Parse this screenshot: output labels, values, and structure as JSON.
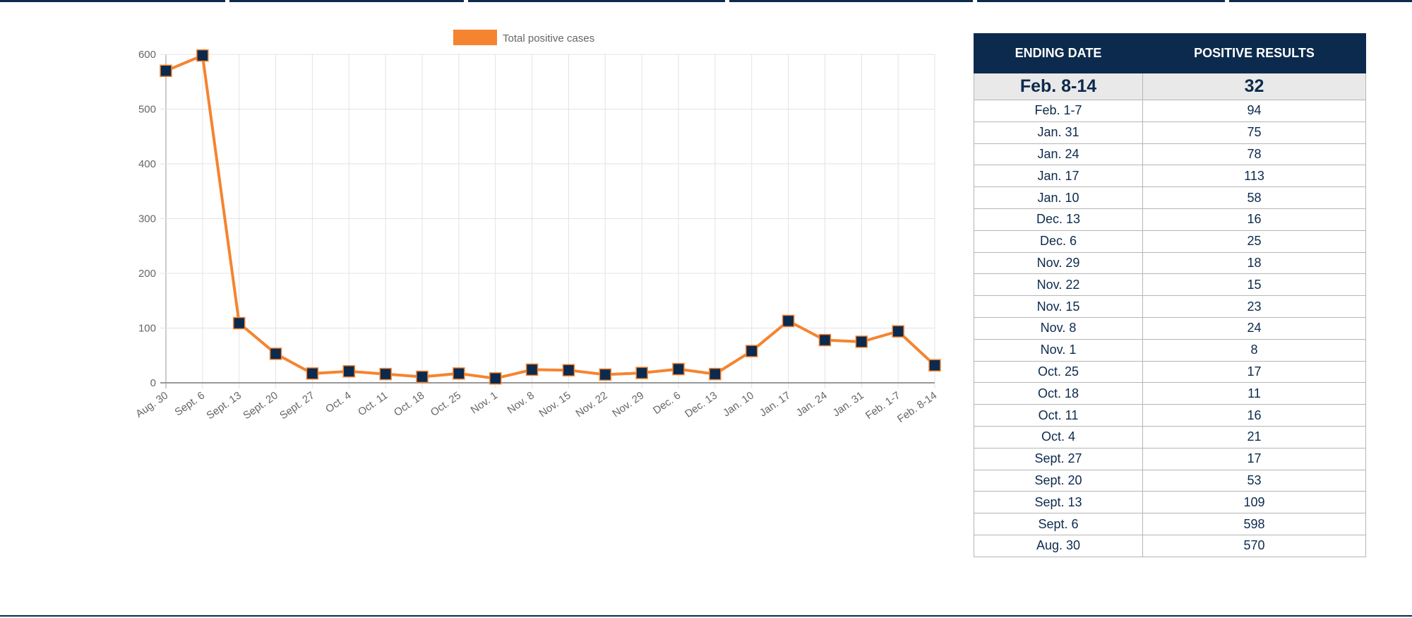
{
  "chart_data": {
    "type": "line",
    "legend": {
      "label": "Total positive cases",
      "position": "top"
    },
    "categories": [
      "Aug. 30",
      "Sept. 6",
      "Sept. 13",
      "Sept. 20",
      "Sept. 27",
      "Oct. 4",
      "Oct. 11",
      "Oct. 18",
      "Oct. 25",
      "Nov. 1",
      "Nov. 8",
      "Nov. 15",
      "Nov. 22",
      "Nov. 29",
      "Dec. 6",
      "Dec. 13",
      "Jan. 10",
      "Jan. 17",
      "Jan. 24",
      "Jan. 31",
      "Feb. 1-7",
      "Feb. 8-14"
    ],
    "series": [
      {
        "name": "Total positive cases",
        "values": [
          570,
          598,
          109,
          53,
          17,
          21,
          16,
          11,
          17,
          8,
          24,
          23,
          15,
          18,
          25,
          16,
          58,
          113,
          78,
          75,
          94,
          32
        ]
      }
    ],
    "ylim": [
      0,
      600
    ],
    "yticks": [
      0,
      100,
      200,
      300,
      400,
      500,
      600
    ],
    "grid": true,
    "colors": {
      "line": "#f58430",
      "marker": "#0c2a4d",
      "grid": "#e3e3e3"
    }
  },
  "table": {
    "headers": [
      "ENDING DATE",
      "POSITIVE RESULTS"
    ],
    "rows": [
      [
        "Feb. 8-14",
        "32"
      ],
      [
        "Feb. 1-7",
        "94"
      ],
      [
        "Jan. 31",
        "75"
      ],
      [
        "Jan. 24",
        "78"
      ],
      [
        "Jan. 17",
        "113"
      ],
      [
        "Jan. 10",
        "58"
      ],
      [
        "Dec. 13",
        "16"
      ],
      [
        "Dec. 6",
        "25"
      ],
      [
        "Nov. 29",
        "18"
      ],
      [
        "Nov. 22",
        "15"
      ],
      [
        "Nov. 15",
        "23"
      ],
      [
        "Nov. 8",
        "24"
      ],
      [
        "Nov. 1",
        "8"
      ],
      [
        "Oct. 25",
        "17"
      ],
      [
        "Oct. 18",
        "11"
      ],
      [
        "Oct. 11",
        "16"
      ],
      [
        "Oct. 4",
        "21"
      ],
      [
        "Sept. 27",
        "17"
      ],
      [
        "Sept. 20",
        "53"
      ],
      [
        "Sept. 13",
        "109"
      ],
      [
        "Sept. 6",
        "598"
      ],
      [
        "Aug. 30",
        "570"
      ]
    ]
  }
}
